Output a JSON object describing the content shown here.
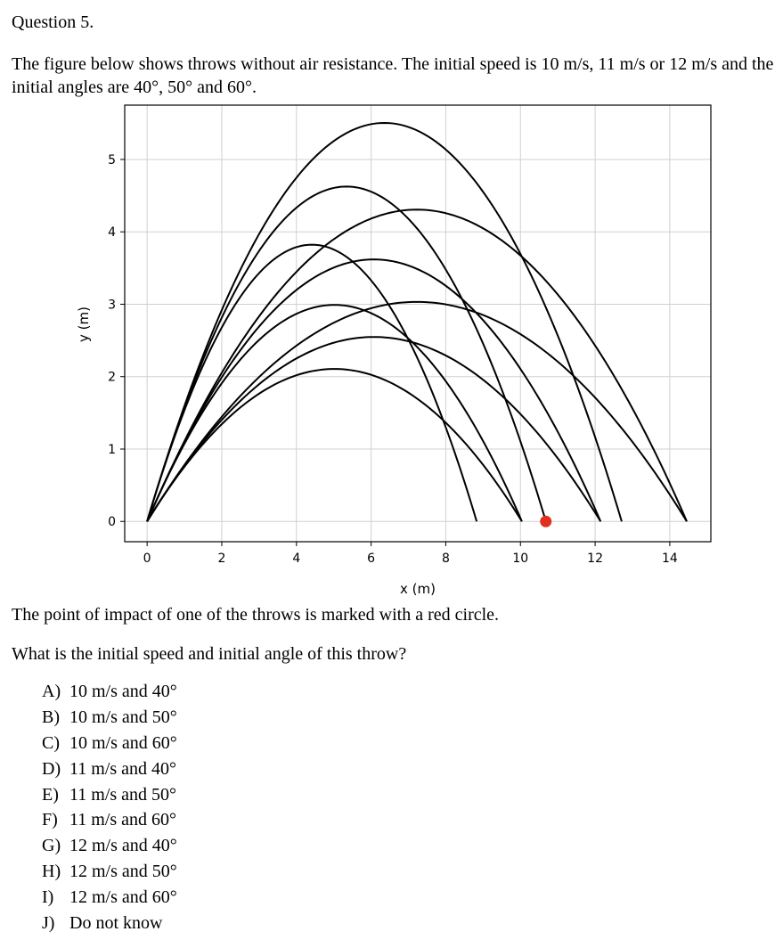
{
  "question_title": "Question 5.",
  "intro": "The figure below shows throws without air resistance. The initial speed is 10 m/s, 11 m/s or 12 m/s and the initial angles are 40°, 50° and 60°.",
  "impact_text": "The point of impact of one of the throws is marked with a red circle.",
  "question_text": "What is the initial speed and initial angle of this throw?",
  "options": [
    {
      "letter": "A)",
      "text": "10 m/s and 40°"
    },
    {
      "letter": "B)",
      "text": "10 m/s and 50°"
    },
    {
      "letter": "C)",
      "text": "10 m/s and 60°"
    },
    {
      "letter": "D)",
      "text": "11 m/s and 40°"
    },
    {
      "letter": "E)",
      "text": "11 m/s and 50°"
    },
    {
      "letter": "F)",
      "text": "11 m/s and 60°"
    },
    {
      "letter": "G)",
      "text": "12 m/s and 40°"
    },
    {
      "letter": "H)",
      "text": "12 m/s and 50°"
    },
    {
      "letter": "I)",
      "text": "12 m/s and 60°"
    },
    {
      "letter": "J)",
      "text": "Do not know"
    }
  ],
  "chart_data": {
    "type": "line",
    "title": "",
    "xlabel": "x (m)",
    "ylabel": "y (m)",
    "xlim": [
      -0.6,
      15.1
    ],
    "ylim": [
      -0.28,
      5.75
    ],
    "xticks": [
      0,
      2,
      4,
      6,
      8,
      10,
      12,
      14
    ],
    "yticks": [
      0,
      1,
      2,
      3,
      4,
      5
    ],
    "grid": true,
    "g": 9.81,
    "line_color": "#000000",
    "marker_color": "#e0301e",
    "series": [
      {
        "speed": 10,
        "angle": 40
      },
      {
        "speed": 10,
        "angle": 50
      },
      {
        "speed": 10,
        "angle": 60
      },
      {
        "speed": 11,
        "angle": 40
      },
      {
        "speed": 11,
        "angle": 50
      },
      {
        "speed": 11,
        "angle": 60
      },
      {
        "speed": 12,
        "angle": 40
      },
      {
        "speed": 12,
        "angle": 50
      },
      {
        "speed": 12,
        "angle": 60
      }
    ],
    "marked_point": {
      "x": 10.68,
      "y": 0
    }
  }
}
